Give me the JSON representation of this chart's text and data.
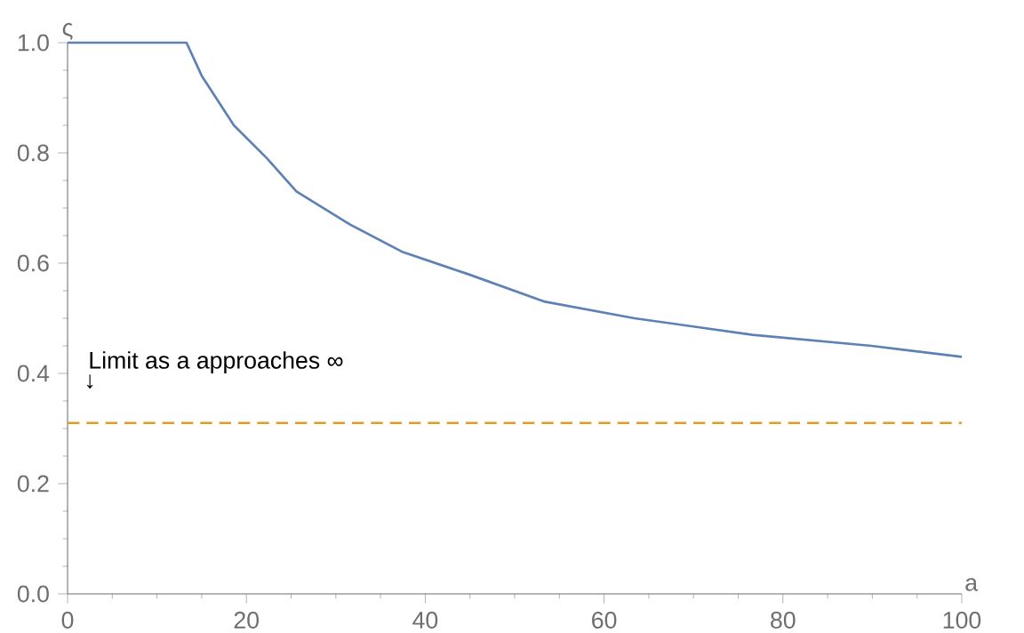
{
  "chart_data": {
    "type": "line",
    "xlabel": "a",
    "ylabel": "ς",
    "annotations": [
      "Limit as a approaches ∞",
      "↓"
    ],
    "x": [
      0,
      13.3,
      15.0,
      18.6,
      22.3,
      25.6,
      31.6,
      37.5,
      44.8,
      53.4,
      63.4,
      76.6,
      89.9,
      100
    ],
    "series": [
      {
        "color": "#5e81b5",
        "values": [
          1.0,
          1.0,
          0.94,
          0.85,
          0.79,
          0.73,
          0.67,
          0.62,
          0.58,
          0.53,
          0.5,
          0.47,
          0.45,
          0.43
        ]
      }
    ],
    "xlim": [
      0,
      100
    ],
    "ylim": [
      0,
      1
    ],
    "xticks": [
      0,
      20,
      40,
      60,
      80,
      100
    ],
    "yticks": [
      {
        "value": 0,
        "label": "0.0"
      },
      0.2,
      0.4,
      0.6,
      0.8,
      {
        "value": 1,
        "label": "1.0"
      }
    ],
    "ref_lines": [
      {
        "axis": "y",
        "value": 0.31,
        "color": "#e19c24",
        "line_style": "dashed"
      }
    ],
    "grid": false,
    "marker": "none",
    "line_style": "solid"
  }
}
